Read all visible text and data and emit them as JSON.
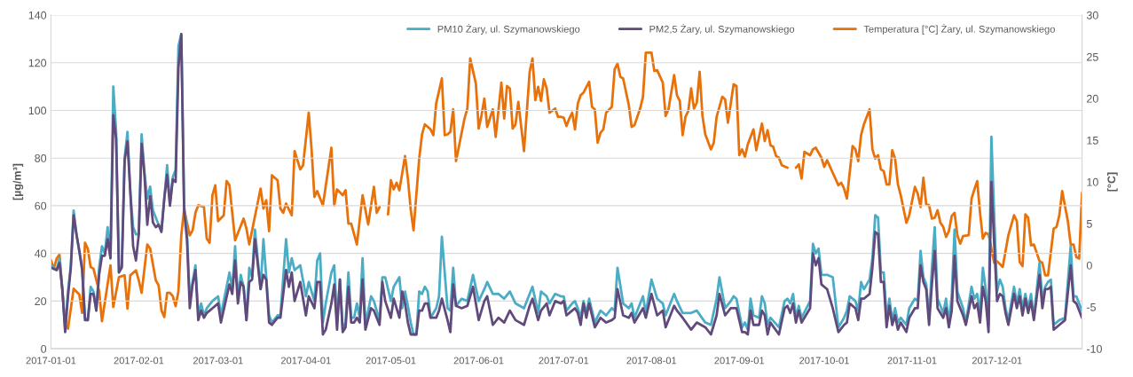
{
  "chart_data": {
    "type": "line",
    "ylabel": "[µg/m³]",
    "y2label": "[°C]",
    "xlim": [
      "2017-01-01",
      "2017-12-31"
    ],
    "xticks": [
      "2017-01-01",
      "2017-02-01",
      "2017-03-01",
      "2017-04-01",
      "2017-05-01",
      "2017-06-01",
      "2017-07-01",
      "2017-08-01",
      "2017-09-01",
      "2017-10-01",
      "2017-11-01",
      "2017-12-01"
    ],
    "ylim": [
      0,
      140
    ],
    "yticks": [
      0,
      20,
      40,
      60,
      80,
      100,
      120,
      140
    ],
    "y2lim": [
      -10,
      30
    ],
    "y2ticks": [
      -10,
      -5,
      0,
      5,
      10,
      15,
      20,
      25,
      30
    ],
    "grid": "y",
    "legend": "top",
    "x": [
      "2017-01-01",
      "2017-01-03",
      "2017-01-04",
      "2017-01-05",
      "2017-01-06",
      "2017-01-07",
      "2017-01-08",
      "2017-01-09",
      "2017-01-10",
      "2017-01-11",
      "2017-01-12",
      "2017-01-13",
      "2017-01-14",
      "2017-01-15",
      "2017-01-16",
      "2017-01-17",
      "2017-01-18",
      "2017-01-19",
      "2017-01-20",
      "2017-01-21",
      "2017-01-22",
      "2017-01-23",
      "2017-01-24",
      "2017-01-25",
      "2017-01-26",
      "2017-01-27",
      "2017-01-28",
      "2017-01-29",
      "2017-01-30",
      "2017-01-31",
      "2017-02-01",
      "2017-02-02",
      "2017-02-03",
      "2017-02-04",
      "2017-02-05",
      "2017-02-06",
      "2017-02-07",
      "2017-02-08",
      "2017-02-09",
      "2017-02-10",
      "2017-02-11",
      "2017-02-12",
      "2017-02-13",
      "2017-02-14",
      "2017-02-15",
      "2017-02-16",
      "2017-02-17",
      "2017-02-18",
      "2017-02-19",
      "2017-02-20",
      "2017-02-21",
      "2017-02-22",
      "2017-02-23",
      "2017-02-24",
      "2017-02-25",
      "2017-02-27",
      "2017-03-01",
      "2017-03-02",
      "2017-03-05",
      "2017-03-06",
      "2017-03-07",
      "2017-03-08",
      "2017-03-09",
      "2017-03-10",
      "2017-03-11",
      "2017-03-12",
      "2017-03-13",
      "2017-03-14",
      "2017-03-16",
      "2017-03-17",
      "2017-03-18",
      "2017-03-19",
      "2017-03-20",
      "2017-03-22",
      "2017-03-23",
      "2017-03-25",
      "2017-03-26",
      "2017-03-27",
      "2017-03-28",
      "2017-03-30",
      "2017-04-01",
      "2017-04-02",
      "2017-04-04",
      "2017-04-05",
      "2017-04-06",
      "2017-04-07",
      "2017-04-08",
      "2017-04-10",
      "2017-04-11",
      "2017-04-12",
      "2017-04-13",
      "2017-04-14",
      "2017-04-15",
      "2017-04-16",
      "2017-04-17",
      "2017-04-18",
      "2017-04-19",
      "2017-04-20",
      "2017-04-21",
      "2017-04-22",
      "2017-04-24",
      "2017-04-25",
      "2017-04-27",
      "2017-04-28",
      "2017-04-29",
      "2017-05-01",
      "2017-05-02",
      "2017-05-04",
      "2017-05-05",
      "2017-05-06",
      "2017-05-07",
      "2017-05-08",
      "2017-05-09",
      "2017-05-10",
      "2017-05-11",
      "2017-05-12",
      "2017-05-13",
      "2017-05-14",
      "2017-05-15",
      "2017-05-17",
      "2017-05-18",
      "2017-05-19",
      "2017-05-21",
      "2017-05-22",
      "2017-05-23",
      "2017-05-24",
      "2017-05-26",
      "2017-05-28",
      "2017-05-30",
      "2017-06-01",
      "2017-06-03",
      "2017-06-04",
      "2017-06-06",
      "2017-06-08",
      "2017-06-10",
      "2017-06-12",
      "2017-06-14",
      "2017-06-17",
      "2017-06-19",
      "2017-06-20",
      "2017-06-22",
      "2017-06-23",
      "2017-06-25",
      "2017-06-26",
      "2017-06-28",
      "2017-06-30",
      "2017-07-01",
      "2017-07-02",
      "2017-07-04",
      "2017-07-05",
      "2017-07-06",
      "2017-07-07",
      "2017-07-08",
      "2017-07-09",
      "2017-07-10",
      "2017-07-12",
      "2017-07-14",
      "2017-07-16",
      "2017-07-18",
      "2017-07-19",
      "2017-07-20",
      "2017-07-22",
      "2017-07-24",
      "2017-07-25",
      "2017-07-26",
      "2017-07-29",
      "2017-07-30",
      "2017-08-01",
      "2017-08-03",
      "2017-08-05",
      "2017-08-06",
      "2017-08-09",
      "2017-08-10",
      "2017-08-12",
      "2017-08-15",
      "2017-08-17",
      "2017-08-20",
      "2017-08-22",
      "2017-08-24",
      "2017-08-25",
      "2017-08-27",
      "2017-08-29",
      "2017-08-30",
      "2017-08-31",
      "2017-09-02",
      "2017-09-03",
      "2017-09-04",
      "2017-09-05",
      "2017-09-06",
      "2017-09-08",
      "2017-09-09",
      "2017-09-10",
      "2017-09-11",
      "2017-09-12",
      "2017-09-15",
      "2017-09-17",
      "2017-09-18",
      "2017-09-19",
      "2017-09-20",
      "2017-09-21",
      "2017-09-22",
      "2017-09-23",
      "2017-09-26",
      "2017-09-27",
      "2017-09-28",
      "2017-09-29",
      "2017-09-30",
      "2017-10-02",
      "2017-10-04",
      "2017-10-06",
      "2017-10-08",
      "2017-10-09",
      "2017-10-10",
      "2017-10-12",
      "2017-10-13",
      "2017-10-14",
      "2017-10-15",
      "2017-10-17",
      "2017-10-18",
      "2017-10-19",
      "2017-10-20",
      "2017-10-21",
      "2017-10-22",
      "2017-10-23",
      "2017-10-24",
      "2017-10-25",
      "2017-10-26",
      "2017-10-27",
      "2017-10-28",
      "2017-10-30",
      "2017-10-31",
      "2017-11-02",
      "2017-11-03",
      "2017-11-04",
      "2017-11-05",
      "2017-11-06",
      "2017-11-07",
      "2017-11-08",
      "2017-11-09",
      "2017-11-10",
      "2017-11-12",
      "2017-11-13",
      "2017-11-14",
      "2017-11-15",
      "2017-11-16",
      "2017-11-17",
      "2017-11-19",
      "2017-11-20",
      "2017-11-22",
      "2017-11-23",
      "2017-11-24",
      "2017-11-25",
      "2017-11-26",
      "2017-11-27",
      "2017-11-28",
      "2017-11-29",
      "2017-11-30",
      "2017-12-01",
      "2017-12-02",
      "2017-12-03",
      "2017-12-04",
      "2017-12-05",
      "2017-12-07",
      "2017-12-08",
      "2017-12-09",
      "2017-12-10",
      "2017-12-11",
      "2017-12-12",
      "2017-12-13",
      "2017-12-14",
      "2017-12-16",
      "2017-12-17",
      "2017-12-18",
      "2017-12-19",
      "2017-12-20",
      "2017-12-21",
      "2017-12-23",
      "2017-12-25",
      "2017-12-27",
      "2017-12-28",
      "2017-12-29",
      "2017-12-31"
    ],
    "series": [
      {
        "name": "PM10 Żary, ul. Szymanowskiego",
        "color": "#4bacc6",
        "values": [
          35,
          33,
          38,
          25,
          8,
          24,
          35,
          58,
          48,
          41,
          34,
          13,
          12,
          26,
          24,
          16,
          34,
          43,
          40,
          51,
          38,
          110,
          91,
          32,
          35,
          80,
          91,
          66,
          51,
          48,
          48,
          90,
          74,
          63,
          68,
          58,
          55,
          52,
          50,
          63,
          77,
          61,
          72,
          75,
          127,
          132,
          60,
          49,
          21,
          28,
          35,
          14,
          19,
          14,
          17,
          20,
          22,
          14,
          32,
          25,
          43,
          21,
          31,
          26,
          12,
          34,
          30,
          50,
          25,
          46,
          30,
          14,
          11,
          14,
          14,
          46,
          32,
          38,
          33,
          35,
          22,
          28,
          20,
          37,
          40,
          11,
          19,
          32,
          35,
          12,
          29,
          8,
          11,
          32,
          13,
          13,
          19,
          13,
          38,
          10,
          22,
          20,
          12,
          30,
          30,
          20,
          26,
          30,
          17,
          24,
          18,
          11,
          6,
          6,
          24,
          23,
          26,
          24,
          13,
          17,
          22,
          47,
          17,
          16,
          34,
          18,
          21,
          20,
          31,
          20,
          25,
          28,
          23,
          23,
          21,
          24,
          19,
          17,
          23,
          26,
          15,
          24,
          22,
          19,
          23,
          22,
          22,
          16,
          19,
          20,
          17,
          13,
          20,
          15,
          21,
          11,
          16,
          14,
          17,
          16,
          34,
          19,
          17,
          19,
          13,
          22,
          15,
          29,
          21,
          19,
          14,
          23,
          20,
          15,
          15,
          16,
          11,
          10,
          21,
          30,
          17,
          20,
          22,
          21,
          9,
          11,
          8,
          21,
          14,
          13,
          22,
          19,
          10,
          13,
          9,
          20,
          21,
          19,
          23,
          13,
          18,
          13,
          20,
          44,
          40,
          42,
          31,
          31,
          30,
          9,
          13,
          16,
          22,
          20,
          16,
          28,
          25,
          29,
          38,
          56,
          55,
          32,
          32,
          13,
          21,
          12,
          17,
          11,
          13,
          10,
          17,
          21,
          20,
          41,
          30,
          27,
          13,
          34,
          51,
          21,
          15,
          21,
          11,
          22,
          50,
          24,
          17,
          11,
          26,
          21,
          23,
          15,
          34,
          25,
          10,
          89,
          56,
          24,
          29,
          26,
          17,
          12,
          26,
          19,
          25,
          17,
          23,
          17,
          23,
          13,
          36,
          20,
          26,
          28,
          29,
          10,
          12,
          13,
          43,
          22,
          22,
          16
        ]
      },
      {
        "name": "PM2,5 Żary, ul. Szymanowskiego",
        "color": "#604a7b",
        "values": [
          34,
          33,
          36,
          25,
          7,
          22,
          34,
          56,
          48,
          41,
          33,
          12,
          12,
          23,
          23,
          16,
          31,
          39,
          39,
          46,
          38,
          98,
          88,
          32,
          34,
          79,
          87,
          66,
          43,
          37,
          48,
          86,
          73,
          52,
          64,
          53,
          51,
          52,
          49,
          63,
          73,
          60,
          71,
          70,
          118,
          132,
          58,
          46,
          17,
          27,
          33,
          12,
          16,
          13,
          15,
          17,
          19,
          11,
          27,
          23,
          37,
          19,
          28,
          26,
          12,
          28,
          29,
          46,
          25,
          31,
          29,
          11,
          10,
          13,
          13,
          33,
          26,
          32,
          20,
          28,
          14,
          22,
          17,
          28,
          28,
          6,
          8,
          19,
          27,
          8,
          29,
          7,
          9,
          26,
          11,
          11,
          13,
          11,
          29,
          8,
          17,
          16,
          10,
          28,
          20,
          13,
          21,
          13,
          24,
          19,
          11,
          6,
          6,
          6,
          16,
          16,
          19,
          19,
          13,
          13,
          16,
          21,
          12,
          7,
          27,
          18,
          17,
          18,
          26,
          12,
          20,
          22,
          10,
          13,
          11,
          16,
          12,
          10,
          18,
          21,
          12,
          16,
          19,
          14,
          20,
          19,
          20,
          14,
          16,
          17,
          15,
          10,
          19,
          13,
          19,
          9,
          13,
          11,
          12,
          13,
          25,
          14,
          13,
          15,
          11,
          17,
          13,
          23,
          14,
          16,
          9,
          18,
          16,
          13,
          8,
          11,
          9,
          6,
          14,
          23,
          14,
          17,
          17,
          17,
          7,
          7,
          6,
          16,
          10,
          10,
          16,
          14,
          6,
          11,
          6,
          17,
          18,
          15,
          19,
          11,
          16,
          11,
          17,
          40,
          35,
          38,
          27,
          25,
          17,
          7,
          10,
          11,
          19,
          17,
          12,
          21,
          21,
          23,
          34,
          49,
          48,
          28,
          28,
          9,
          18,
          10,
          14,
          8,
          11,
          7,
          13,
          17,
          17,
          35,
          28,
          25,
          10,
          27,
          41,
          17,
          13,
          17,
          9,
          16,
          39,
          20,
          14,
          10,
          22,
          17,
          19,
          11,
          26,
          20,
          7,
          70,
          44,
          20,
          23,
          22,
          15,
          10,
          23,
          17,
          22,
          14,
          21,
          15,
          20,
          12,
          31,
          17,
          25,
          25,
          26,
          8,
          10,
          12,
          35,
          20,
          19,
          13
        ]
      },
      {
        "name": "Temperatura [°C] Żary, ul. Szymanowskiego",
        "color": "#e8710a",
        "axis": "y2",
        "x": [
          "2017-01-01",
          "2017-01-02",
          "2017-01-03",
          "2017-01-04",
          "2017-01-06",
          "2017-01-07",
          "2017-01-09",
          "2017-01-11",
          "2017-01-12",
          "2017-01-13",
          "2017-01-14",
          "2017-01-15",
          "2017-01-16",
          "2017-01-18",
          "2017-01-19",
          "2017-01-22",
          "2017-01-23",
          "2017-01-25",
          "2017-01-27",
          "2017-01-28",
          "2017-01-29",
          "2017-01-31",
          "2017-02-01",
          "2017-02-02",
          "2017-02-04",
          "2017-02-05",
          "2017-02-07",
          "2017-02-08",
          "2017-02-09",
          "2017-02-10",
          "2017-02-11",
          "2017-02-12",
          "2017-02-13",
          "2017-02-14",
          "2017-02-15",
          "2017-02-16",
          "2017-02-17",
          "2017-02-19",
          "2017-02-20",
          "2017-02-21",
          "2017-02-22",
          "2017-02-24",
          "2017-02-25",
          "2017-02-26",
          "2017-02-27",
          "2017-02-28",
          "2017-03-01",
          "2017-03-03",
          "2017-03-04",
          "2017-03-05",
          "2017-03-07",
          "2017-03-10",
          "2017-03-11",
          "2017-03-12",
          "2017-03-16",
          "2017-03-17",
          "2017-03-18",
          "2017-03-19",
          "2017-03-20",
          "2017-03-22",
          "2017-03-23",
          "2017-03-24",
          "2017-03-25",
          "2017-03-27",
          "2017-03-28",
          "2017-03-30",
          "2017-03-31",
          "2017-04-02",
          "2017-04-03",
          "2017-04-04",
          "2017-04-05",
          "2017-04-07",
          "2017-04-10",
          "2017-04-11",
          "2017-04-12",
          "2017-04-14",
          "2017-04-15",
          "2017-04-16",
          "2017-04-17",
          "2017-04-19",
          "2017-04-21",
          "2017-04-23",
          "2017-04-25",
          "2017-04-26",
          "2017-04-27",
          "2017-04-29",
          "2017-04-30",
          "2017-05-01",
          "2017-05-02",
          "2017-05-03",
          "2017-05-04",
          "2017-05-06",
          "2017-05-07",
          "2017-05-08",
          "2017-05-09",
          "2017-05-11",
          "2017-05-12",
          "2017-05-13",
          "2017-05-15",
          "2017-05-16",
          "2017-05-17",
          "2017-05-19",
          "2017-05-20",
          "2017-05-21",
          "2017-05-22",
          "2017-05-23",
          "2017-05-24",
          "2017-05-25",
          "2017-05-27",
          "2017-05-28",
          "2017-05-29",
          "2017-05-31",
          "2017-06-01",
          "2017-06-02",
          "2017-06-03",
          "2017-06-04",
          "2017-06-06",
          "2017-06-07",
          "2017-06-09",
          "2017-06-10",
          "2017-06-11",
          "2017-06-12",
          "2017-06-13",
          "2017-06-14",
          "2017-06-15",
          "2017-06-17",
          "2017-06-19",
          "2017-06-20",
          "2017-06-21",
          "2017-06-22",
          "2017-06-23",
          "2017-06-24",
          "2017-06-25",
          "2017-06-26",
          "2017-06-28",
          "2017-06-29",
          "2017-06-30",
          "2017-07-01",
          "2017-07-02",
          "2017-07-03",
          "2017-07-04",
          "2017-07-05",
          "2017-07-06",
          "2017-07-07",
          "2017-07-08",
          "2017-07-10",
          "2017-07-11",
          "2017-07-12",
          "2017-07-13",
          "2017-07-14",
          "2017-07-15",
          "2017-07-16",
          "2017-07-18",
          "2017-07-19",
          "2017-07-20",
          "2017-07-21",
          "2017-07-22",
          "2017-07-24",
          "2017-07-25",
          "2017-07-26",
          "2017-07-28",
          "2017-07-29",
          "2017-07-30",
          "2017-08-01",
          "2017-08-02",
          "2017-08-03",
          "2017-08-05",
          "2017-08-06",
          "2017-08-07",
          "2017-08-09",
          "2017-08-10",
          "2017-08-11",
          "2017-08-12",
          "2017-08-13",
          "2017-08-14",
          "2017-08-15",
          "2017-08-16",
          "2017-08-17",
          "2017-08-18",
          "2017-08-19",
          "2017-08-20",
          "2017-08-22",
          "2017-08-23",
          "2017-08-24",
          "2017-08-26",
          "2017-08-27",
          "2017-08-28",
          "2017-08-30",
          "2017-08-31",
          "2017-09-01",
          "2017-09-02",
          "2017-09-03",
          "2017-09-04",
          "2017-09-06",
          "2017-09-07",
          "2017-09-09",
          "2017-09-10",
          "2017-09-11",
          "2017-09-12",
          "2017-09-13",
          "2017-09-14",
          "2017-09-15",
          "2017-09-16",
          "2017-09-18",
          "2017-09-20",
          "2017-09-21",
          "2017-09-22",
          "2017-09-23",
          "2017-09-24",
          "2017-09-26",
          "2017-09-27",
          "2017-09-28",
          "2017-09-30",
          "2017-10-01",
          "2017-10-02",
          "2017-10-04",
          "2017-10-06",
          "2017-10-07",
          "2017-10-08",
          "2017-10-09",
          "2017-10-11",
          "2017-10-12",
          "2017-10-13",
          "2017-10-14",
          "2017-10-15",
          "2017-10-17",
          "2017-10-18",
          "2017-10-19",
          "2017-10-20",
          "2017-10-21",
          "2017-10-22",
          "2017-10-23",
          "2017-10-24",
          "2017-10-25",
          "2017-10-26",
          "2017-10-27",
          "2017-10-28",
          "2017-10-30",
          "2017-10-31",
          "2017-11-02",
          "2017-11-03",
          "2017-11-04",
          "2017-11-05",
          "2017-11-06",
          "2017-11-07",
          "2017-11-08",
          "2017-11-09",
          "2017-11-10",
          "2017-11-11",
          "2017-11-12",
          "2017-11-13",
          "2017-11-14",
          "2017-11-15",
          "2017-11-16",
          "2017-11-17",
          "2017-11-18",
          "2017-11-19",
          "2017-11-21",
          "2017-11-22",
          "2017-11-23",
          "2017-11-24",
          "2017-11-25",
          "2017-11-26",
          "2017-11-27",
          "2017-11-28",
          "2017-11-30",
          "2017-12-01",
          "2017-12-03",
          "2017-12-05",
          "2017-12-07",
          "2017-12-08",
          "2017-12-09",
          "2017-12-10",
          "2017-12-11",
          "2017-12-12",
          "2017-12-13",
          "2017-12-14",
          "2017-12-16",
          "2017-12-17",
          "2017-12-18",
          "2017-12-19",
          "2017-12-21",
          "2017-12-22",
          "2017-12-23",
          "2017-12-24",
          "2017-12-26",
          "2017-12-27",
          "2017-12-28",
          "2017-12-29",
          "2017-12-30",
          "2017-12-31"
        ],
        "values": [
          0.6,
          -0.4,
          0.8,
          1.3,
          -7.1,
          -7.6,
          -2.8,
          -3.5,
          -5.7,
          2.7,
          2,
          -0.2,
          -0.4,
          -3.1,
          -6.7,
          0,
          -5,
          -1.4,
          -1.2,
          -5.2,
          -1.2,
          -0.6,
          -1.8,
          -3.3,
          2.5,
          2,
          -1.8,
          -2.4,
          -5.4,
          -6.2,
          -3.3,
          -3.3,
          -3.7,
          -4.9,
          -3.1,
          3.6,
          6.7,
          3.6,
          4.2,
          6.3,
          7.2,
          7,
          3.2,
          2.7,
          8.4,
          9.6,
          5.3,
          6,
          10.1,
          9.6,
          3,
          5.6,
          4.4,
          2.5,
          9.2,
          6.8,
          7.8,
          4.1,
          10.8,
          10.2,
          6.8,
          6.3,
          7.4,
          6,
          13.7,
          11.5,
          12,
          18.3,
          13.9,
          8.2,
          8.9,
          7.2,
          14.1,
          7.2,
          9.1,
          8.4,
          9,
          5,
          5,
          2.5,
          8.4,
          4.9,
          9.4,
          6.3,
          7,
          null,
          6.1,
          10.2,
          9.1,
          9.9,
          9,
          13.1,
          10.4,
          6.7,
          4.2,
          12.8,
          15.7,
          16.9,
          16.3,
          15.6,
          19.4,
          22.4,
          15.6,
          15.7,
          16,
          18.7,
          12.5,
          14.2,
          17.6,
          18.8,
          24.8,
          21.8,
          16.4,
          18,
          20,
          16.6,
          18.7,
          15.4,
          21.9,
          17.6,
          21.5,
          21.2,
          16.4,
          16.9,
          19.6,
          13.7,
          23.2,
          24.8,
          19.8,
          21.4,
          19.7,
          22.3,
          21.2,
          18.3,
          18.8,
          17.8,
          17.8,
          17.7,
          16.7,
          17.6,
          18.3,
          16.3,
          19.4,
          20.4,
          20.7,
          22,
          19,
          18.7,
          14.7,
          15.9,
          16.3,
          18.3,
          19,
          23.5,
          24.2,
          22.6,
          22.4,
          19.2,
          16.6,
          16.8,
          18.8,
          20.2,
          25.5,
          25.5,
          23.3,
          23.4,
          21.9,
          17.9,
          18.7,
          22.8,
          20.4,
          19.7,
          15.6,
          17.8,
          18.5,
          21.2,
          18.8,
          19.5,
          23.2,
          17.9,
          15.7,
          13.9,
          14.7,
          17.8,
          20.2,
          19.9,
          17.1,
          21.7,
          21.5,
          13.2,
          13.9,
          13,
          14.5,
          16.3,
          13.8,
          17,
          14.9,
          16.2,
          14.4,
          14.2,
          13.1,
          12.9,
          12,
          11.7,
          null,
          11.7,
          12.1,
          10.4,
          13.6,
          13.2,
          13.9,
          14.1,
          12.9,
          11.8,
          12.6,
          11.1,
          9.6,
          9.9,
          9.2,
          8,
          14.3,
          13.9,
          12.5,
          15.6,
          16.9,
          18.7,
          13.9,
          12.8,
          13.2,
          11.5,
          11.3,
          9.7,
          9.7,
          13.8,
          12.8,
          9.7,
          8.4,
          5.1,
          6,
          9.4,
          8.6,
          7,
          10.5,
          7.3,
          7.2,
          5.6,
          5.7,
          6.6,
          5.1,
          4.6,
          3.4,
          4.1,
          5.9,
          6.3,
          3.6,
          2.6,
          3.5,
          3.6,
          8,
          9.1,
          10.1,
          6.3,
          3.2,
          3.9,
          3.7,
          0.3,
          0.5,
          -0.2,
          3.6,
          6,
          5.3,
          0.4,
          -0.1,
          6.1,
          5.7,
          2.4,
          2.5,
          0.5,
          0.3,
          -1.2,
          -1.2,
          4.4,
          4.6,
          6,
          8.9,
          5.3,
          2.5,
          2.5,
          1,
          0.8,
          8.7
        ]
      }
    ]
  }
}
